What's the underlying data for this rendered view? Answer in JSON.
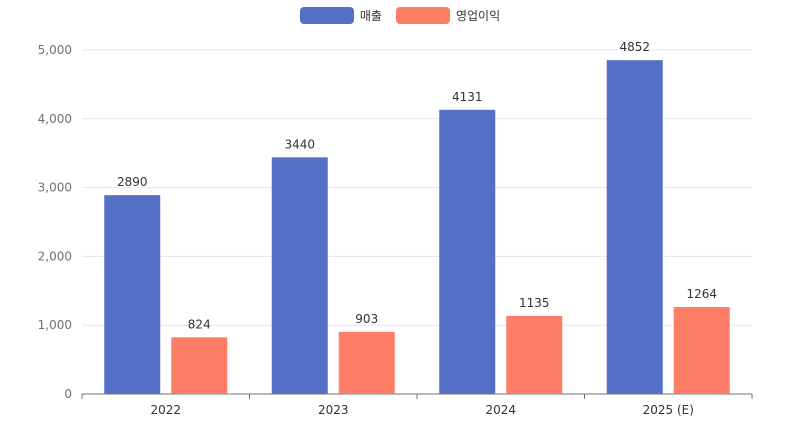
{
  "chart_data": {
    "type": "bar",
    "categories": [
      "2022",
      "2023",
      "2024",
      "2025 (E)"
    ],
    "series": [
      {
        "name": "매출",
        "color": "#5470c6",
        "values": [
          2890,
          3440,
          4131,
          4852
        ]
      },
      {
        "name": "영업이익",
        "color": "#fe7d66",
        "values": [
          824,
          903,
          1135,
          1264
        ]
      }
    ],
    "ylim": [
      0,
      5000
    ],
    "yticks": [
      0,
      1000,
      2000,
      3000,
      4000,
      5000
    ],
    "ytick_labels": [
      "0",
      "1,000",
      "2,000",
      "3,000",
      "4,000",
      "5,000"
    ],
    "grid": true,
    "legend_position": "top-center",
    "data_labels": true
  }
}
